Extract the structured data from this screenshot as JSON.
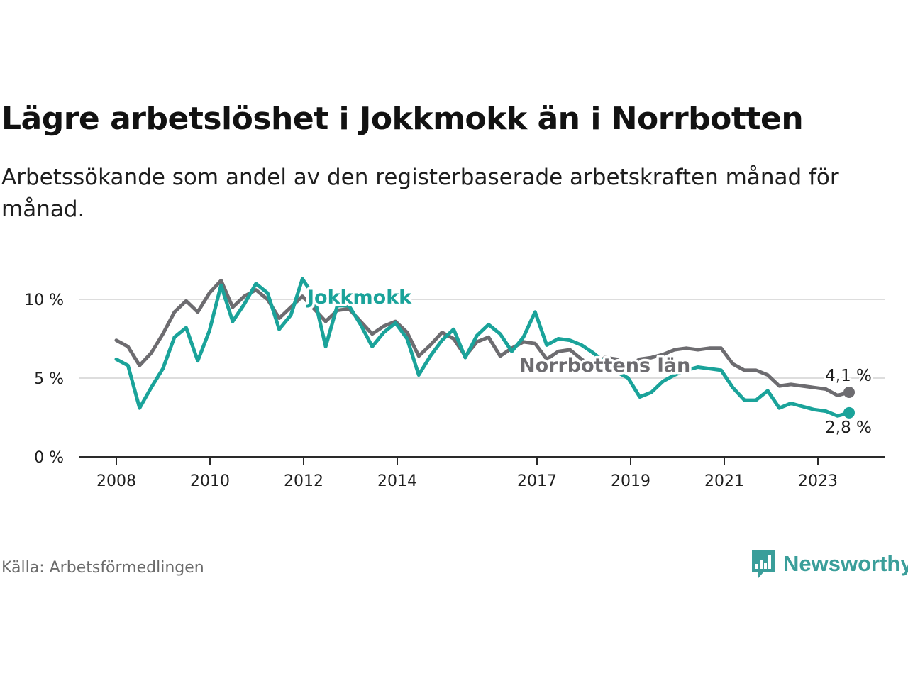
{
  "title": "Lägre arbetslöshet i Jokkmokk än i Norrbotten",
  "subtitle": "Arbetssökande som andel av den registerbaserade arbetskraften månad för månad.",
  "source": "Källa: Arbetsförmedlingen",
  "brand": {
    "name": "Newsworthy",
    "icon": "newsworthy-logo-icon",
    "color": "#3a9e9a"
  },
  "chart_data": {
    "type": "line",
    "title": "Lägre arbetslöshet i Jokkmokk än i Norrbotten",
    "xlabel": "",
    "ylabel": "",
    "x_range": [
      2008.0,
      2023.75
    ],
    "ylim": [
      0,
      12
    ],
    "y_ticks": [
      0,
      5,
      10
    ],
    "y_tick_labels": [
      "0 %",
      "5 %",
      "10 %"
    ],
    "x_ticks": [
      2008,
      2010,
      2012,
      2014,
      2017,
      2019,
      2021,
      2023
    ],
    "x_tick_labels": [
      "2008",
      "2010",
      "2012",
      "2014",
      "2017",
      "2019",
      "2021",
      "2023"
    ],
    "grid": true,
    "series": [
      {
        "name": "Norrbottens län",
        "color": "#6d6c70",
        "end_label": "4,1 %",
        "x": [
          2008.0,
          2008.25,
          2008.5,
          2008.75,
          2009.0,
          2009.25,
          2009.5,
          2009.75,
          2010.0,
          2010.25,
          2010.5,
          2010.75,
          2011.0,
          2011.25,
          2011.5,
          2011.75,
          2012.0,
          2012.25,
          2012.5,
          2012.75,
          2013.0,
          2013.25,
          2013.5,
          2013.75,
          2014.0,
          2014.25,
          2014.5,
          2014.75,
          2015.0,
          2015.25,
          2015.5,
          2015.75,
          2016.0,
          2016.25,
          2016.5,
          2016.75,
          2017.0,
          2017.25,
          2017.5,
          2017.75,
          2018.0,
          2018.25,
          2018.5,
          2018.75,
          2019.0,
          2019.25,
          2019.5,
          2019.75,
          2020.0,
          2020.25,
          2020.5,
          2020.75,
          2021.0,
          2021.25,
          2021.5,
          2021.75,
          2022.0,
          2022.25,
          2022.5,
          2022.75,
          2023.0,
          2023.25,
          2023.5,
          2023.75
        ],
        "values": [
          7.4,
          7.0,
          5.8,
          6.6,
          7.8,
          9.2,
          9.9,
          9.2,
          10.4,
          11.2,
          9.5,
          10.2,
          10.6,
          10.0,
          8.8,
          9.5,
          10.2,
          9.4,
          8.6,
          9.3,
          9.4,
          8.6,
          7.8,
          8.3,
          8.6,
          7.9,
          6.4,
          7.1,
          7.9,
          7.5,
          6.4,
          7.3,
          7.6,
          6.4,
          6.9,
          7.3,
          7.2,
          6.2,
          6.7,
          6.8,
          6.2,
          5.7,
          6.3,
          6.2,
          5.8,
          6.2,
          6.3,
          6.5,
          6.8,
          6.9,
          6.8,
          6.9,
          6.9,
          5.9,
          5.5,
          5.5,
          5.2,
          4.5,
          4.6,
          4.5,
          4.4,
          4.3,
          3.9,
          4.1
        ]
      },
      {
        "name": "Jokkmokk",
        "color": "#1aa39a",
        "end_label": "2,8 %",
        "x": [
          2008.0,
          2008.25,
          2008.5,
          2008.75,
          2009.0,
          2009.25,
          2009.5,
          2009.75,
          2010.0,
          2010.25,
          2010.5,
          2010.75,
          2011.0,
          2011.25,
          2011.5,
          2011.75,
          2012.0,
          2012.25,
          2012.5,
          2012.75,
          2013.0,
          2013.25,
          2013.5,
          2013.75,
          2014.0,
          2014.25,
          2014.5,
          2014.75,
          2015.0,
          2015.25,
          2015.5,
          2015.75,
          2016.0,
          2016.25,
          2016.5,
          2016.75,
          2017.0,
          2017.25,
          2017.5,
          2017.75,
          2018.0,
          2018.25,
          2018.5,
          2018.75,
          2019.0,
          2019.25,
          2019.5,
          2019.75,
          2020.0,
          2020.25,
          2020.5,
          2020.75,
          2021.0,
          2021.25,
          2021.5,
          2021.75,
          2022.0,
          2022.25,
          2022.5,
          2022.75,
          2023.0,
          2023.25,
          2023.5,
          2023.75
        ],
        "values": [
          6.2,
          5.8,
          3.1,
          4.4,
          5.6,
          7.6,
          8.2,
          6.1,
          8.0,
          10.9,
          8.6,
          9.7,
          11.0,
          10.4,
          8.1,
          9.0,
          11.3,
          10.2,
          7.0,
          9.6,
          9.6,
          8.4,
          7.0,
          7.9,
          8.5,
          7.5,
          5.2,
          6.4,
          7.4,
          8.1,
          6.3,
          7.7,
          8.4,
          7.8,
          6.7,
          7.6,
          9.2,
          7.1,
          7.5,
          7.4,
          7.1,
          6.6,
          6.0,
          5.4,
          5.0,
          3.8,
          4.1,
          4.8,
          5.2,
          5.5,
          5.7,
          5.6,
          5.5,
          4.4,
          3.6,
          3.6,
          4.2,
          3.1,
          3.4,
          3.2,
          3.0,
          2.9,
          2.6,
          2.8
        ]
      }
    ]
  }
}
